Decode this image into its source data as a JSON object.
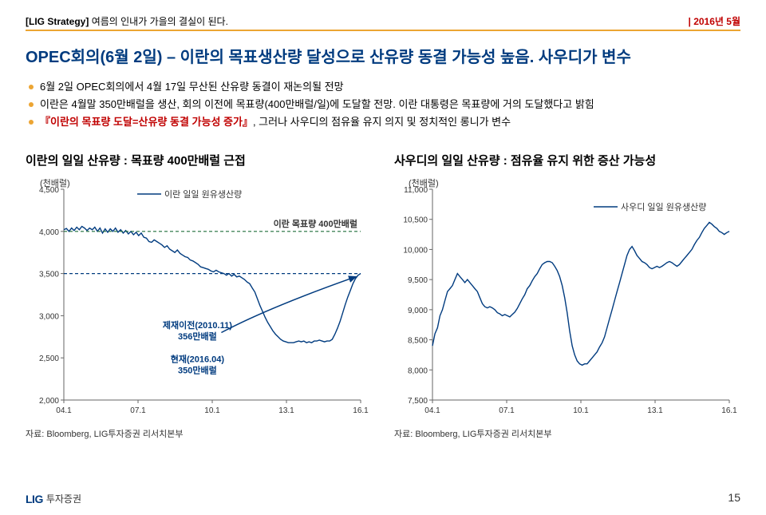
{
  "header": {
    "tag": "[LIG Strategy]",
    "tagline": "여름의 인내가 가을의 결실이 된다.",
    "date": "2016년 5월"
  },
  "headline": "OPEC회의(6월 2일) – 이란의 목표생산량 달성으로 산유량 동결 가능성 높음. 사우디가 변수",
  "bullets": {
    "b1": "6월 2일 OPEC회의에서 4월 17일 무산된 산유량 동결이 재논의될 전망",
    "b2": "이란은 4월말 350만배럴을 생산, 회의 이전에 목표량(400만배럴/일)에 도달할 전망. 이란 대통령은 목표량에 거의 도달했다고 밝힘",
    "b3_pre": "『이란의 목표량 도달=산유량 동결 가능성 증가』",
    "b3_post": ", 그러나 사우디의 점유율 유지 의지 및 정치적인 롱니가 변수"
  },
  "chart_left": {
    "title": "이란의 일일 산유량 : 목표량 400만배럴 근접",
    "unit": "(천배럴)",
    "legend": "이란 일일 원유생산량",
    "target_label": "이란 목표량 400만배럴",
    "ann1_a": "제재이전(2010.11)",
    "ann1_b": "356만배럴",
    "ann2_a": "현재(2016.04)",
    "ann2_b": "350만배럴",
    "ymin": 2000,
    "ymax": 4500,
    "ystep": 500,
    "xlabels": [
      "04.1",
      "07.1",
      "10.1",
      "13.1",
      "16.1"
    ],
    "source": "자료: Bloomberg, LIG투자증권 리서치본부",
    "line_color": "#003b7f",
    "target_color": "#1f6f3a",
    "data": [
      4020,
      4035,
      4000,
      4040,
      4010,
      4050,
      4020,
      4060,
      4040,
      4010,
      4040,
      4020,
      4050,
      4000,
      4040,
      3980,
      4030,
      3990,
      4030,
      4000,
      4040,
      3990,
      4020,
      3980,
      4010,
      3970,
      4000,
      3960,
      3990,
      3950,
      3980,
      3930,
      3920,
      3880,
      3870,
      3900,
      3880,
      3860,
      3840,
      3810,
      3830,
      3790,
      3770,
      3750,
      3780,
      3740,
      3720,
      3700,
      3690,
      3660,
      3650,
      3630,
      3610,
      3580,
      3570,
      3560,
      3550,
      3530,
      3520,
      3540,
      3520,
      3510,
      3500,
      3480,
      3500,
      3470,
      3490,
      3460,
      3470,
      3450,
      3430,
      3400,
      3380,
      3330,
      3280,
      3200,
      3120,
      3050,
      2980,
      2920,
      2870,
      2820,
      2780,
      2750,
      2720,
      2700,
      2690,
      2680,
      2680,
      2680,
      2690,
      2700,
      2690,
      2700,
      2680,
      2690,
      2680,
      2700,
      2700,
      2710,
      2700,
      2690,
      2700,
      2700,
      2720,
      2780,
      2850,
      2930,
      3030,
      3130,
      3220,
      3300,
      3380,
      3440,
      3480,
      3500
    ]
  },
  "chart_right": {
    "title": "사우디의 일일 산유량 : 점유율 유지 위한 증산 가능성",
    "unit": "(천배럴)",
    "legend": "사우디 일일 원유생산량",
    "ymin": 7500,
    "ymax": 11000,
    "ystep": 500,
    "xlabels": [
      "04.1",
      "07.1",
      "10.1",
      "13.1",
      "16.1"
    ],
    "source": "자료: Bloomberg, LIG투자증권 리서치본부",
    "line_color": "#003b7f",
    "data": [
      8400,
      8600,
      8700,
      8900,
      9000,
      9150,
      9300,
      9350,
      9400,
      9500,
      9600,
      9550,
      9500,
      9450,
      9500,
      9450,
      9400,
      9350,
      9300,
      9200,
      9100,
      9050,
      9030,
      9050,
      9030,
      9000,
      8950,
      8930,
      8900,
      8920,
      8900,
      8880,
      8920,
      8960,
      9020,
      9100,
      9180,
      9250,
      9350,
      9400,
      9480,
      9550,
      9600,
      9680,
      9750,
      9780,
      9800,
      9800,
      9780,
      9720,
      9650,
      9550,
      9400,
      9200,
      8950,
      8650,
      8400,
      8250,
      8150,
      8100,
      8080,
      8100,
      8100,
      8150,
      8200,
      8250,
      8300,
      8380,
      8450,
      8550,
      8700,
      8850,
      9000,
      9150,
      9300,
      9450,
      9600,
      9750,
      9900,
      10000,
      10050,
      9980,
      9900,
      9850,
      9800,
      9780,
      9750,
      9700,
      9680,
      9700,
      9720,
      9700,
      9720,
      9750,
      9780,
      9800,
      9780,
      9750,
      9720,
      9750,
      9800,
      9850,
      9900,
      9950,
      10000,
      10080,
      10150,
      10200,
      10280,
      10350,
      10400,
      10450,
      10420,
      10380,
      10350,
      10300,
      10280,
      10250,
      10280,
      10300
    ]
  },
  "footer": {
    "brand_a": "LIG",
    "brand_b": "투자증권",
    "page": "15"
  }
}
